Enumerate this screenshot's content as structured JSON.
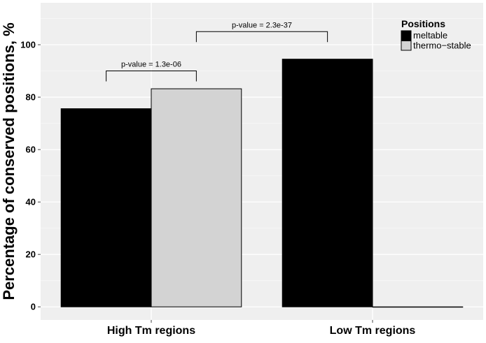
{
  "chart_data": {
    "type": "bar",
    "categories": [
      "High Tm regions",
      "Low Tm regions"
    ],
    "series": [
      {
        "name": "meltable",
        "values": [
          75.6,
          94.5
        ],
        "color": "#000000"
      },
      {
        "name": "thermo-stable",
        "values": [
          83.2,
          0
        ],
        "color": "#d3d3d3"
      }
    ],
    "ylabel": "Percentage of conserved positions, %",
    "xlabel": "",
    "ylim": [
      -5,
      116
    ],
    "yticks": [
      0,
      20,
      40,
      60,
      80,
      100
    ],
    "grid": true,
    "legend": {
      "title": "Positions",
      "placement": "top-right"
    },
    "annotations": [
      {
        "text": "p-value = 1.3e-06",
        "from": "High Tm regions/meltable",
        "to": "High Tm regions/thermo-stable",
        "y": 90,
        "tick_bottom": 86
      },
      {
        "text": "p-value = 2.3e-37",
        "from": "High Tm regions/thermo-stable",
        "to": "Low Tm regions/meltable",
        "y": 105,
        "tick_bottom": 101
      }
    ]
  }
}
